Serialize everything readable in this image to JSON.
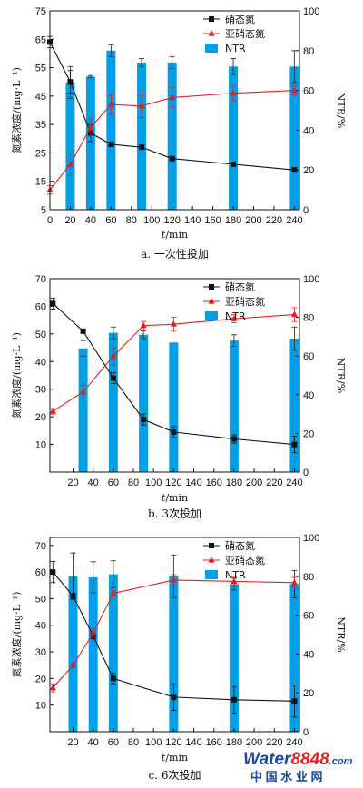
{
  "chart_data": [
    {
      "type": "bar",
      "caption": "a. 一次性投加",
      "xlabel_var": "t",
      "xlabel_unit": "/min",
      "ylabel": "氮素浓度/(mg·L⁻¹)",
      "y2label": "NTR/%",
      "x_ticks": [
        0,
        20,
        40,
        60,
        80,
        100,
        120,
        140,
        160,
        180,
        200,
        220,
        240
      ],
      "ylim": [
        5,
        75
      ],
      "y_ticks": [
        5,
        15,
        25,
        35,
        45,
        55,
        65,
        75
      ],
      "y2lim": [
        0,
        100
      ],
      "y2_ticks": [
        0,
        20,
        40,
        60,
        80,
        100
      ],
      "legend": [
        "硝态氮",
        "亚硝态氮",
        "NTR"
      ],
      "series": [
        {
          "name": "硝态氮",
          "kind": "line",
          "color": "#111111",
          "marker": "square",
          "x": [
            0,
            20,
            40,
            60,
            90,
            120,
            180,
            240
          ],
          "y": [
            64,
            50,
            32,
            28,
            27,
            23,
            21,
            19
          ],
          "err": [
            2,
            4,
            3,
            0.5,
            0.5,
            0.5,
            0.5,
            0.5
          ]
        },
        {
          "name": "亚硝态氮",
          "kind": "line",
          "color": "#e02020",
          "marker": "triangle",
          "x": [
            0,
            20,
            40,
            60,
            90,
            120,
            180,
            240
          ],
          "y": [
            12,
            21,
            34,
            42,
            41.5,
            44.5,
            46,
            47
          ],
          "err": [
            1.5,
            4,
            3,
            3.5,
            4,
            3.5,
            2.5,
            1.5
          ]
        },
        {
          "name": "NTR",
          "kind": "bar",
          "color": "#00a0e9",
          "x": [
            20,
            40,
            60,
            90,
            120,
            180,
            240
          ],
          "y": [
            64,
            67,
            80,
            74,
            74,
            72,
            72
          ],
          "err": [
            8,
            0.5,
            3,
            2,
            3,
            4,
            8
          ]
        }
      ]
    },
    {
      "type": "bar",
      "caption": "b. 3次投加",
      "xlabel_var": "t",
      "xlabel_unit": "/min",
      "ylabel": "氮素浓度/(mg·L⁻¹)",
      "y2label": "NTR/%",
      "x_ticks": [
        20,
        40,
        60,
        80,
        100,
        120,
        140,
        160,
        180,
        200,
        220,
        240
      ],
      "ylim": [
        0,
        70
      ],
      "y_ticks": [
        10,
        20,
        30,
        40,
        50,
        60,
        70
      ],
      "y2lim": [
        0,
        100
      ],
      "y2_ticks": [
        0,
        20,
        40,
        60,
        80,
        100
      ],
      "legend": [
        "硝态氮",
        "亚硝态氮",
        "NTR"
      ],
      "series": [
        {
          "name": "硝态氮",
          "kind": "line",
          "color": "#111111",
          "marker": "square",
          "x": [
            0,
            30,
            60,
            90,
            120,
            180,
            240
          ],
          "y": [
            61,
            51,
            34,
            19,
            14.5,
            12,
            10
          ],
          "err": [
            2,
            0.5,
            2,
            2,
            2,
            1.5,
            3
          ]
        },
        {
          "name": "亚硝态氮",
          "kind": "line",
          "color": "#e02020",
          "marker": "triangle",
          "x": [
            0,
            30,
            60,
            90,
            120,
            180,
            240
          ],
          "y": [
            22,
            29,
            42,
            53,
            53.5,
            55.5,
            57
          ],
          "err": [
            1,
            2.5,
            3,
            1.5,
            2.5,
            1.5,
            2.5
          ]
        },
        {
          "name": "NTR",
          "kind": "bar",
          "color": "#00a0e9",
          "x": [
            30,
            60,
            90,
            120,
            180,
            240
          ],
          "y": [
            64,
            72,
            71,
            67,
            68,
            69
          ],
          "err": [
            4,
            3,
            2,
            0,
            3,
            6
          ]
        }
      ]
    },
    {
      "type": "bar",
      "caption": "c. 6次投加",
      "xlabel_var": "t",
      "xlabel_unit": "/min",
      "ylabel": "氮素浓度/(mg·L⁻¹)",
      "y2label": "NTR/%",
      "x_ticks": [
        20,
        40,
        60,
        80,
        100,
        120,
        140,
        160,
        180,
        200,
        220,
        240
      ],
      "ylim": [
        0,
        73
      ],
      "y_ticks": [
        10,
        20,
        30,
        40,
        50,
        60,
        70
      ],
      "y2lim": [
        0,
        100
      ],
      "y2_ticks": [
        0,
        20,
        40,
        60,
        80,
        100
      ],
      "legend": [
        "硝态氮",
        "亚硝态氮",
        "NTR"
      ],
      "series": [
        {
          "name": "硝态氮",
          "kind": "line",
          "color": "#111111",
          "marker": "square",
          "x": [
            0,
            20,
            40,
            60,
            120,
            180,
            240
          ],
          "y": [
            60,
            51,
            36,
            20,
            13,
            12,
            11.5
          ],
          "err": [
            4,
            1,
            1,
            2,
            5,
            5,
            6
          ]
        },
        {
          "name": "亚硝态氮",
          "kind": "line",
          "color": "#e02020",
          "marker": "triangle",
          "x": [
            0,
            20,
            40,
            60,
            120,
            180,
            240
          ],
          "y": [
            16.5,
            25,
            37,
            52,
            57,
            56.5,
            56
          ],
          "err": [
            1.5,
            1,
            1.5,
            1,
            2,
            1.5,
            2
          ]
        },
        {
          "name": "NTR",
          "kind": "bar",
          "color": "#00a0e9",
          "x": [
            20,
            40,
            60,
            120,
            180,
            240
          ],
          "y": [
            80,
            79.5,
            81,
            80,
            76,
            76
          ],
          "err": [
            12,
            8,
            7,
            11,
            3,
            7
          ]
        }
      ]
    }
  ],
  "watermark": {
    "brand_a": "Water",
    "brand_b": "8848",
    "brand_c": ".com",
    "subtitle": "中 国 水 业 网",
    "color_main": "#1a4aa0",
    "color_accent": "#e02020"
  }
}
